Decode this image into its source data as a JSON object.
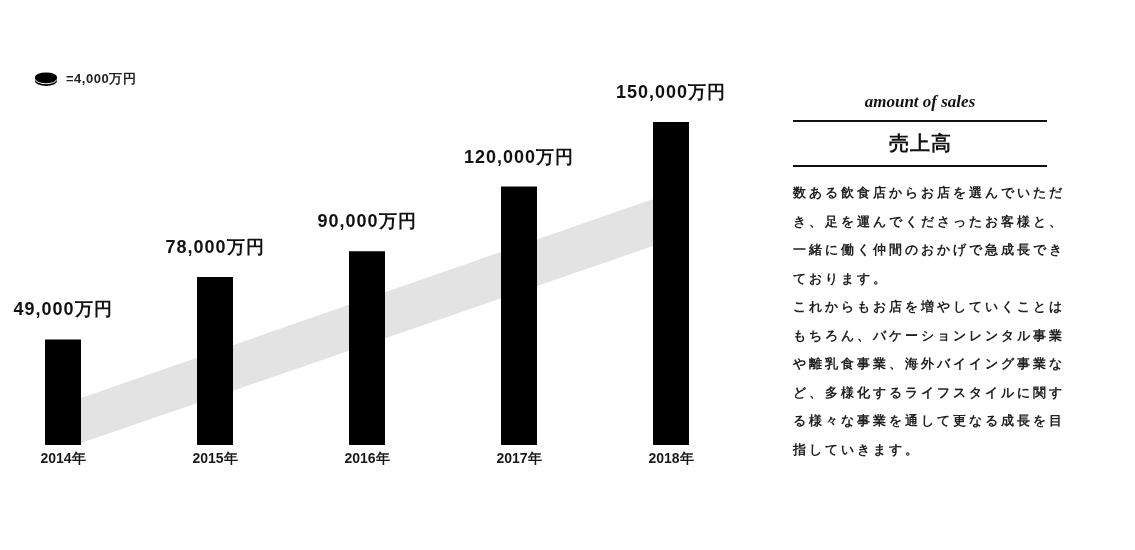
{
  "chart_data": [
    {
      "type": "bar",
      "categories": [
        "2014年",
        "2015年",
        "2016年",
        "2017年",
        "2018年"
      ],
      "values": [
        49000,
        78000,
        90000,
        120000,
        150000
      ],
      "color": "#000000",
      "value_labels": [
        "49,000万円",
        "78,000万円",
        "90,000万円",
        "120,000万円",
        "150,000万円"
      ],
      "annotations": [
        "=4,000万円"
      ]
    },
    {
      "type": "other",
      "title": "売上高",
      "subtitle": "amount of sales",
      "annotations": [
        "数ある飲食店からお店を選んでいただき、足を運んでくださったお客様と、一緒に働く仲間のおかげで急成長できております。",
        "これからもお店を増やしていくことはもちろん、バケーションレンタル事業や離乳食事業、海外バイイング事業など、多様化するライフスタイルに関する様々な事業を通して更なる成長を目指していきます。"
      ]
    }
  ]
}
